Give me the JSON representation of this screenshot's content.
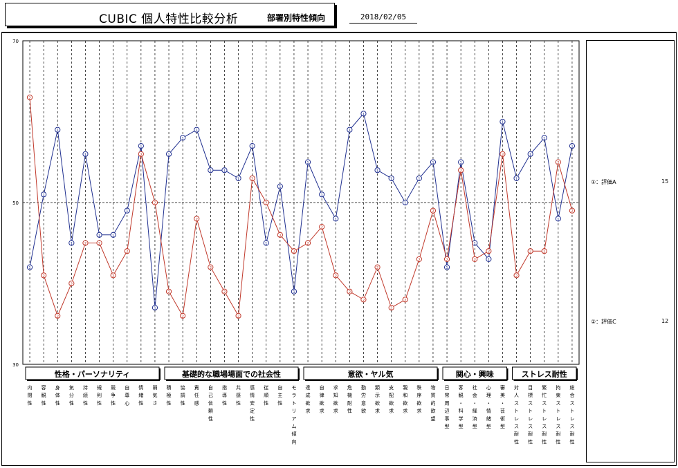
{
  "header": {
    "title": "CUBIC 個人特性比較分析",
    "subtitle": "部署別特性傾向",
    "date": "2018/02/05"
  },
  "legend": {
    "a": {
      "label": "①：評価A",
      "count": "15"
    },
    "c": {
      "label": "②：評価C",
      "count": "12"
    }
  },
  "colors": {
    "a": "#1f2f8f",
    "c": "#c0392b"
  },
  "chart_data": {
    "type": "line",
    "ylim": [
      30,
      70
    ],
    "y_ticks": [
      "70",
      "50",
      "30"
    ],
    "reference_line": 50,
    "groups": [
      {
        "name": "性格・パーソナリティ",
        "count": 10
      },
      {
        "name": "基礎的な職場場面での社会性",
        "count": 10
      },
      {
        "name": "意欲・ヤル気",
        "count": 10
      },
      {
        "name": "関心・興味",
        "count": 5
      },
      {
        "name": "ストレス耐性",
        "count": 5
      }
    ],
    "categories": [
      "内閉性",
      "容観性",
      "身体性",
      "気分性",
      "持続性",
      "規則性",
      "競争性",
      "自尊心",
      "情緒性",
      "弱気さ",
      "積極性",
      "協調性",
      "責任感",
      "自己信頼性",
      "指導性",
      "共感性",
      "感情安定性",
      "従順性",
      "自主性",
      "モラトリアム傾向",
      "達成欲求",
      "自律欲求",
      "求知欲求",
      "危機耐性",
      "勤労意欲",
      "顕示欲求",
      "支配欲求",
      "親和欲求",
      "秩序欲求",
      "物質的欲望",
      "日常周辺事型",
      "客観・科学型",
      "社会・経済型",
      "心理・情緒型",
      "審美・芸術型",
      "対人ストレス耐性",
      "目標ストレス耐性",
      "繁忙ストレス耐性",
      "拘束ストレス耐性",
      "総合ストレス耐性"
    ],
    "axis_labels": [
      [
        "内",
        "閉",
        "性"
      ],
      [
        "容",
        "観",
        "性"
      ],
      [
        "身",
        "体",
        "性"
      ],
      [
        "気",
        "分",
        "性"
      ],
      [
        "持",
        "続",
        "性"
      ],
      [
        "規",
        "則",
        "性"
      ],
      [
        "競",
        "争",
        "性"
      ],
      [
        "自",
        "尊",
        "心"
      ],
      [
        "情",
        "緒",
        "性"
      ],
      [
        "弱",
        "気",
        "さ"
      ],
      [
        "積",
        "極",
        "性"
      ],
      [
        "協",
        "調",
        "性"
      ],
      [
        "責",
        "任",
        "感"
      ],
      [
        "自",
        "己",
        "信",
        "頼",
        "性"
      ],
      [
        "指",
        "導",
        "性"
      ],
      [
        "共",
        "感",
        "性"
      ],
      [
        "感",
        "情",
        "安",
        "定",
        "性"
      ],
      [
        "従",
        "順",
        "性"
      ],
      [
        "自",
        "主",
        "性"
      ],
      [
        "モ",
        "ラ",
        "ト",
        "リ",
        "ア",
        "ム",
        "傾",
        "向"
      ],
      [
        "達",
        "成",
        "欲",
        "求"
      ],
      [
        "自",
        "律",
        "欲",
        "求"
      ],
      [
        "求",
        "知",
        "欲",
        "求"
      ],
      [
        "危",
        "機",
        "耐",
        "性"
      ],
      [
        "勤",
        "労",
        "意",
        "欲"
      ],
      [
        "顕",
        "示",
        "欲",
        "求"
      ],
      [
        "支",
        "配",
        "欲",
        "求"
      ],
      [
        "親",
        "和",
        "欲",
        "求"
      ],
      [
        "秩",
        "序",
        "欲",
        "求"
      ],
      [
        "物",
        "質",
        "的",
        "欲",
        "望"
      ],
      [
        "日",
        "常",
        "周",
        "辺",
        "事",
        "型"
      ],
      [
        "客",
        "観",
        "・",
        "科",
        "学",
        "型"
      ],
      [
        "社",
        "会",
        "・",
        "経",
        "済",
        "型"
      ],
      [
        "心",
        "理",
        "・",
        "情",
        "緒",
        "型"
      ],
      [
        "審",
        "美",
        "・",
        "芸",
        "術",
        "型"
      ],
      [
        "対",
        "人",
        "ス",
        "ト",
        "レ",
        "ス",
        "耐",
        "性"
      ],
      [
        "目",
        "標",
        "ス",
        "ト",
        "レ",
        "ス",
        "耐",
        "性"
      ],
      [
        "繁",
        "忙",
        "ス",
        "ト",
        "レ",
        "ス",
        "耐",
        "性"
      ],
      [
        "拘",
        "束",
        "ス",
        "ト",
        "レ",
        "ス",
        "耐",
        "性"
      ],
      [
        "総",
        "合",
        "ス",
        "ト",
        "レ",
        "ス",
        "耐",
        "性"
      ]
    ],
    "series": [
      {
        "name": "①：評価A",
        "marker": "1",
        "values": [
          42,
          51,
          59,
          45,
          56,
          46,
          46,
          49,
          57,
          37,
          56,
          58,
          59,
          54,
          54,
          53,
          57,
          45,
          52,
          39,
          55,
          51,
          48,
          59,
          61,
          54,
          53,
          50,
          53,
          55,
          42,
          55,
          45,
          43,
          60,
          53,
          56,
          58,
          48,
          57
        ]
      },
      {
        "name": "②：評価C",
        "marker": "2",
        "values": [
          63,
          41,
          36,
          40,
          45,
          45,
          41,
          44,
          56,
          50,
          39,
          36,
          48,
          42,
          39,
          36,
          53,
          50,
          46,
          44,
          45,
          47,
          41,
          39,
          38,
          42,
          37,
          38,
          43,
          49,
          43,
          54,
          43,
          44,
          56,
          41,
          44,
          44,
          55,
          49
        ]
      }
    ]
  }
}
